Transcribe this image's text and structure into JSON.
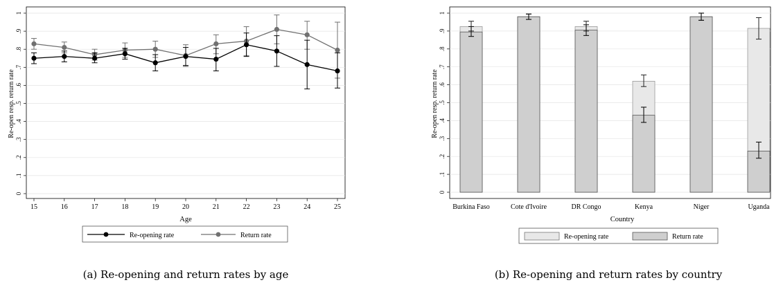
{
  "chart_data": [
    {
      "type": "line",
      "caption": "(a) Re-opening and return rates by age",
      "xlabel": "Age",
      "ylabel": "Re-open resp. return rate",
      "x": [
        15,
        16,
        17,
        18,
        19,
        20,
        21,
        22,
        23,
        24,
        25
      ],
      "ylim": [
        0,
        1
      ],
      "yticks": [
        "0",
        ".1",
        ".2",
        ".3",
        ".4",
        ".5",
        ".6",
        ".7",
        ".8",
        ".9",
        "1"
      ],
      "grid": true,
      "legend_position": "bottom",
      "series": [
        {
          "name": "Re-opening rate",
          "color": "#000000",
          "values": [
            0.75,
            0.76,
            0.75,
            0.775,
            0.725,
            0.76,
            0.745,
            0.825,
            0.79,
            0.715,
            0.68
          ],
          "ci_low": [
            0.72,
            0.73,
            0.725,
            0.745,
            0.68,
            0.71,
            0.68,
            0.76,
            0.705,
            0.58,
            0.585
          ],
          "ci_high": [
            0.78,
            0.79,
            0.78,
            0.805,
            0.77,
            0.81,
            0.805,
            0.89,
            0.875,
            0.85,
            0.78
          ]
        },
        {
          "name": "Return rate",
          "color": "#707070",
          "values": [
            0.83,
            0.81,
            0.77,
            0.795,
            0.8,
            0.765,
            0.83,
            0.845,
            0.91,
            0.88,
            0.795
          ],
          "ci_low": [
            0.8,
            0.78,
            0.74,
            0.755,
            0.755,
            0.705,
            0.775,
            0.765,
            0.83,
            0.8,
            0.64
          ],
          "ci_high": [
            0.86,
            0.84,
            0.8,
            0.835,
            0.845,
            0.825,
            0.88,
            0.925,
            0.99,
            0.955,
            0.95
          ]
        }
      ]
    },
    {
      "type": "bar",
      "caption": "(b) Re-opening and return rates by country",
      "xlabel": "Country",
      "ylabel": "Re-open resp. return rate",
      "categories": [
        "Burkina Faso",
        "Cote d'Ivoire",
        "DR Congo",
        "Kenya",
        "Niger",
        "Uganda"
      ],
      "ylim": [
        0,
        1
      ],
      "yticks": [
        "0",
        ".1",
        ".2",
        ".3",
        ".4",
        ".5",
        ".6",
        ".7",
        ".8",
        ".9",
        "1"
      ],
      "grid": true,
      "legend_position": "bottom",
      "series": [
        {
          "name": "Re-opening rate",
          "color": "#e8e8e8",
          "values": [
            0.925,
            0.98,
            0.925,
            0.62,
            0.98,
            0.915
          ],
          "ci_low": [
            0.9,
            0.965,
            0.9,
            0.59,
            0.96,
            0.855
          ],
          "ci_high": [
            0.955,
            0.995,
            0.955,
            0.655,
            1.0,
            0.975
          ]
        },
        {
          "name": "Return rate",
          "color": "#cfcfcf",
          "values": [
            0.895,
            0.98,
            0.905,
            0.43,
            0.98,
            0.23
          ],
          "ci_low": [
            0.87,
            0.965,
            0.875,
            0.39,
            0.96,
            0.19
          ],
          "ci_high": [
            0.925,
            0.995,
            0.935,
            0.475,
            1.0,
            0.28
          ]
        }
      ]
    }
  ]
}
